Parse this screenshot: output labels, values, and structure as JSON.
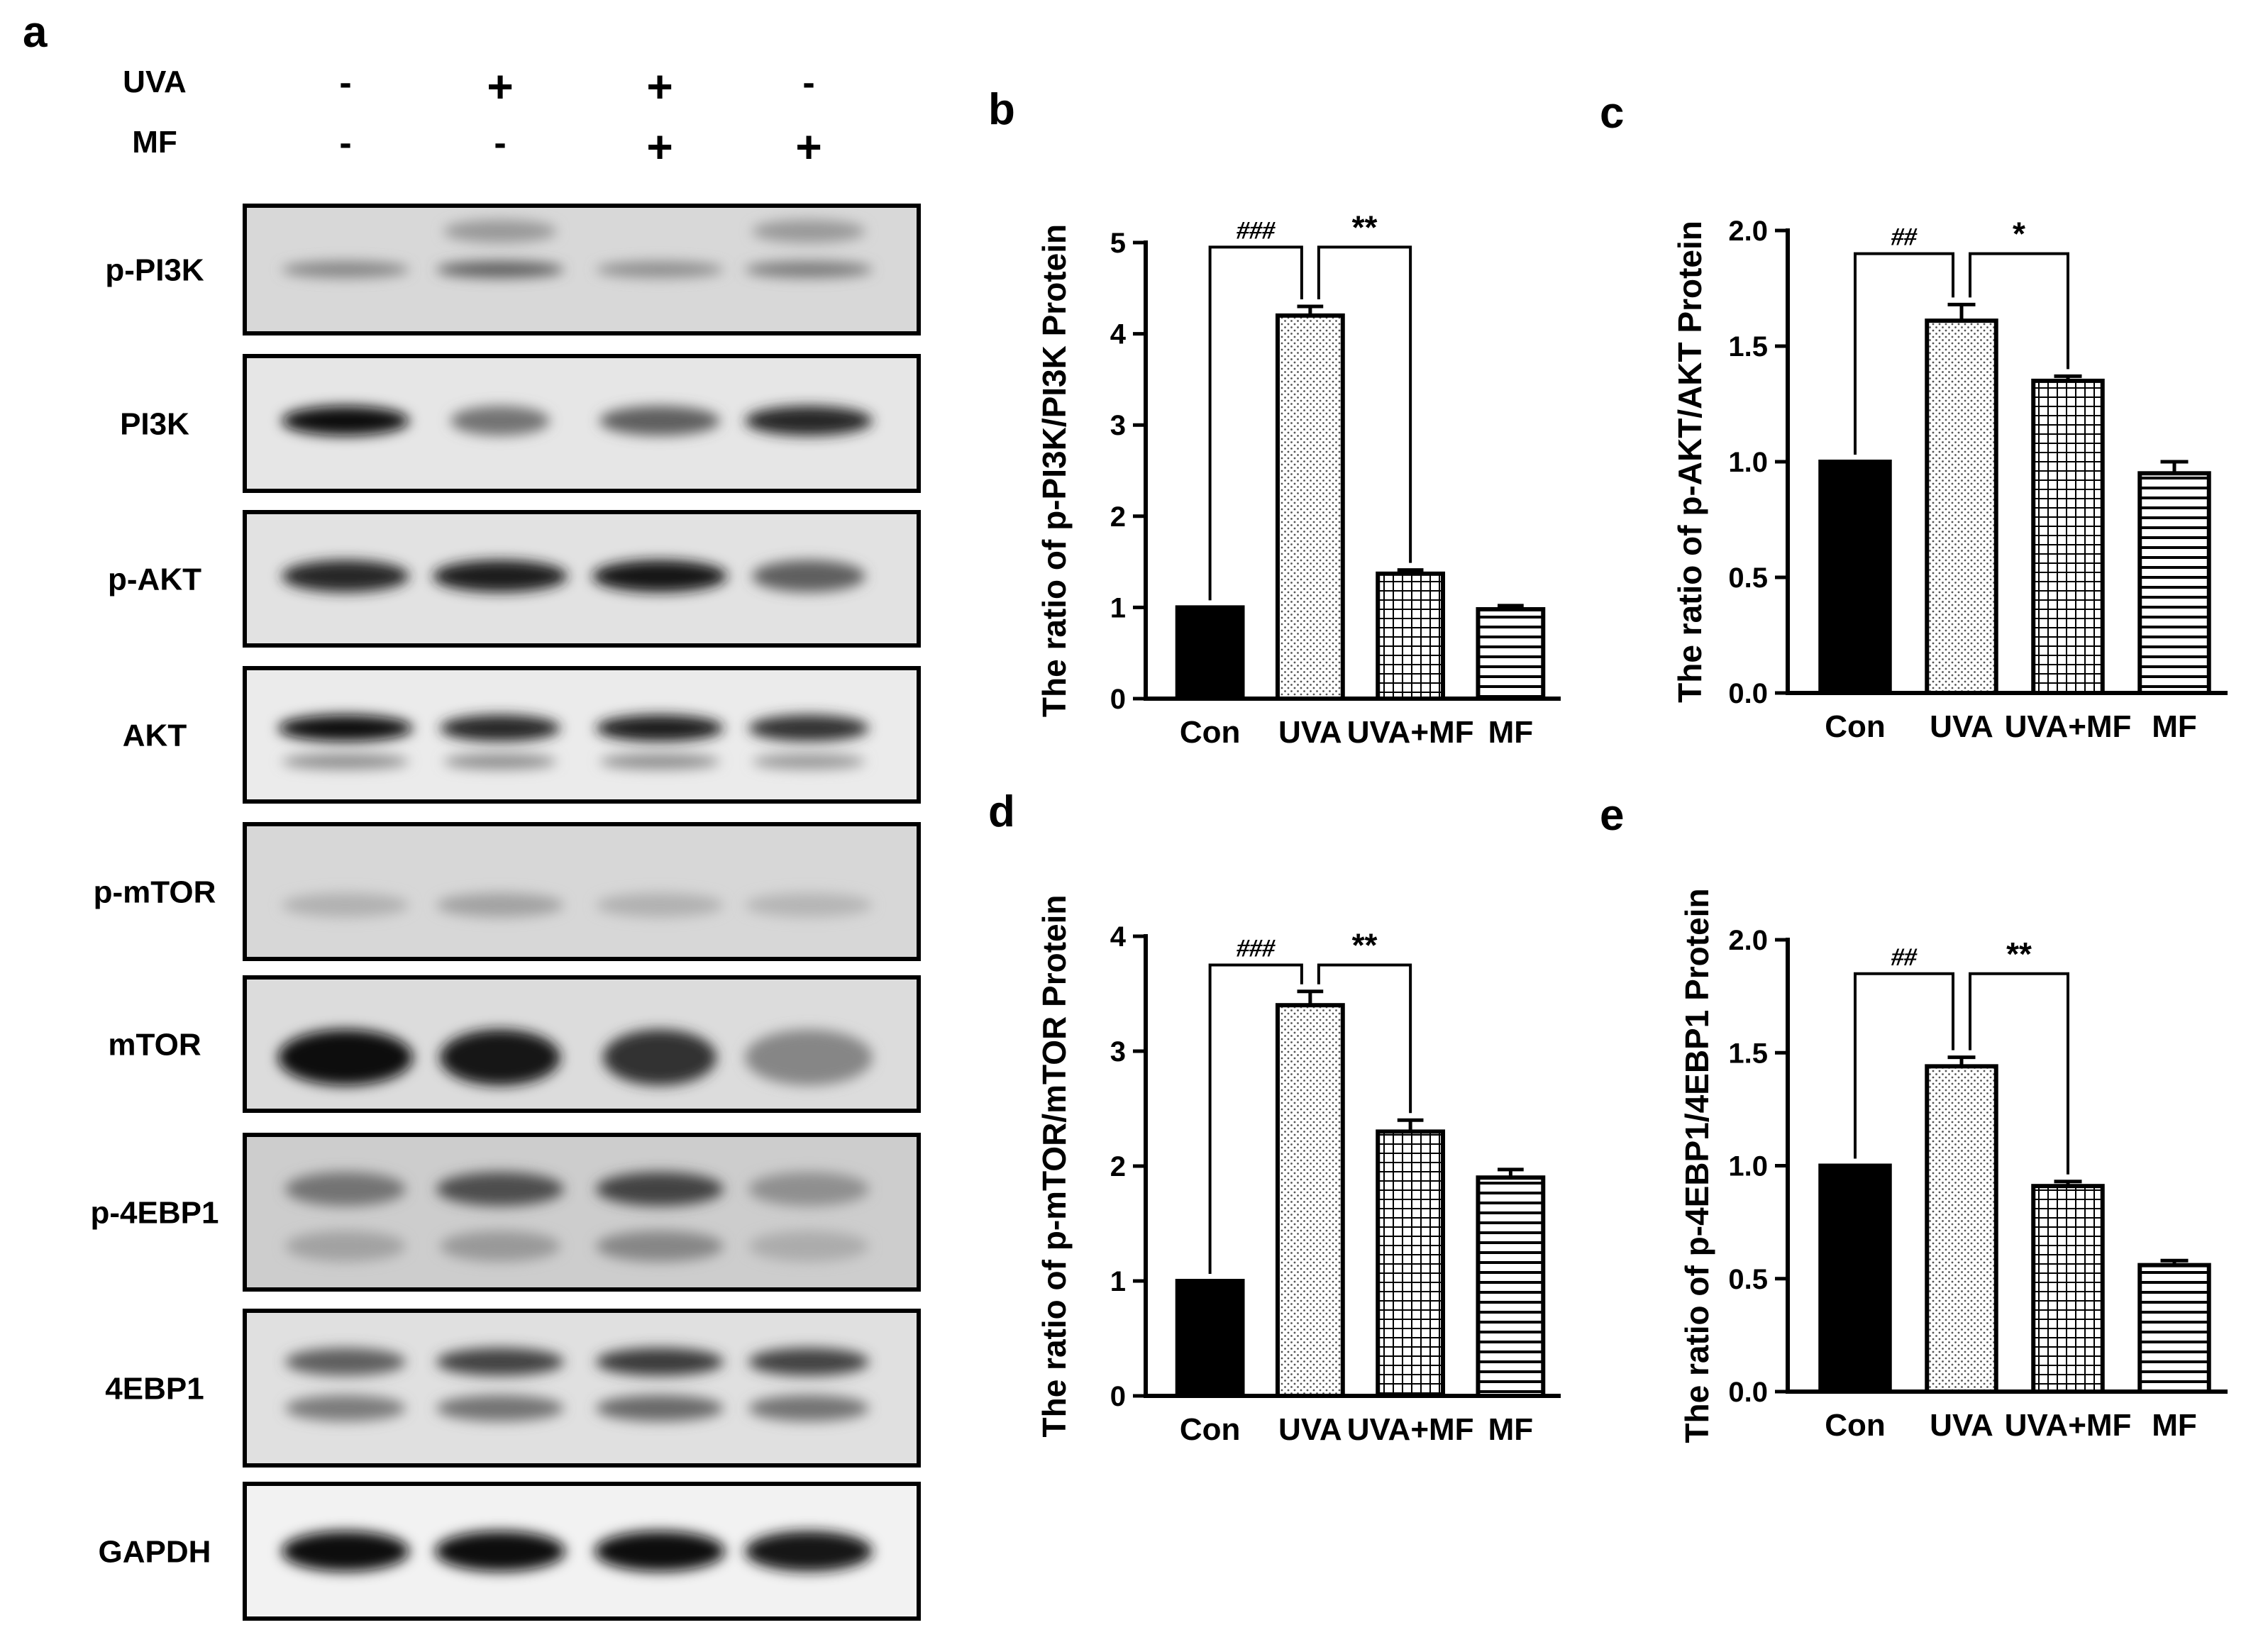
{
  "panel_a": {
    "letter": "a",
    "conditions": [
      {
        "name": "UVA",
        "values": [
          "-",
          "+",
          "+",
          "-"
        ]
      },
      {
        "name": "MF",
        "values": [
          "-",
          "-",
          "+",
          "+"
        ]
      }
    ],
    "blots": [
      {
        "label": "p-PI3K",
        "bands": [
          {
            "y": 0.5,
            "w": [
              0.9,
              0.9,
              0.9,
              0.9
            ],
            "i": [
              0.35,
              0.55,
              0.3,
              0.4
            ],
            "t": 0.13
          },
          {
            "y": 0.2,
            "w": [
              0.8,
              0.8,
              0.8,
              0.8
            ],
            "i": [
              0.0,
              0.25,
              0.0,
              0.25
            ],
            "t": 0.18
          }
        ],
        "bg": "#d8d8d8"
      },
      {
        "label": "PI3K",
        "bands": [
          {
            "y": 0.48,
            "w": [
              0.9,
              0.7,
              0.85,
              0.9
            ],
            "i": [
              1.0,
              0.45,
              0.55,
              0.85
            ],
            "t": 0.22
          }
        ],
        "bg": "#e6e6e6"
      },
      {
        "label": "p-AKT",
        "bands": [
          {
            "y": 0.48,
            "w": [
              0.9,
              0.95,
              0.95,
              0.8
            ],
            "i": [
              0.85,
              0.9,
              0.95,
              0.55
            ],
            "t": 0.24
          }
        ],
        "bg": "#e2e2e2"
      },
      {
        "label": "AKT",
        "bands": [
          {
            "y": 0.45,
            "w": [
              0.95,
              0.85,
              0.9,
              0.85
            ],
            "i": [
              1.0,
              0.85,
              0.9,
              0.8
            ],
            "t": 0.2
          },
          {
            "y": 0.7,
            "w": [
              0.9,
              0.8,
              0.85,
              0.8
            ],
            "i": [
              0.3,
              0.3,
              0.3,
              0.25
            ],
            "t": 0.12
          }
        ],
        "bg": "#ebebeb"
      },
      {
        "label": "p-mTOR",
        "bands": [
          {
            "y": 0.6,
            "w": [
              0.9,
              0.9,
              0.9,
              0.9
            ],
            "i": [
              0.12,
              0.2,
              0.12,
              0.1
            ],
            "t": 0.18
          }
        ],
        "bg": "#d7d7d7"
      },
      {
        "label": "mTOR",
        "bands": [
          {
            "y": 0.6,
            "w": [
              0.95,
              0.85,
              0.8,
              0.9
            ],
            "i": [
              1.0,
              0.95,
              0.8,
              0.35
            ],
            "t": 0.42
          }
        ],
        "bg": "#dcdcdc"
      },
      {
        "label": "p-4EBP1",
        "bands": [
          {
            "y": 0.35,
            "w": [
              0.85,
              0.9,
              0.9,
              0.85
            ],
            "i": [
              0.45,
              0.65,
              0.7,
              0.3
            ],
            "t": 0.22
          },
          {
            "y": 0.72,
            "w": [
              0.85,
              0.85,
              0.9,
              0.85
            ],
            "i": [
              0.2,
              0.25,
              0.35,
              0.15
            ],
            "t": 0.2
          }
        ],
        "bg": "#cdcdcd"
      },
      {
        "label": "4EBP1",
        "bands": [
          {
            "y": 0.33,
            "w": [
              0.85,
              0.9,
              0.9,
              0.85
            ],
            "i": [
              0.55,
              0.7,
              0.75,
              0.7
            ],
            "t": 0.18
          },
          {
            "y": 0.63,
            "w": [
              0.85,
              0.9,
              0.9,
              0.85
            ],
            "i": [
              0.4,
              0.45,
              0.5,
              0.45
            ],
            "t": 0.17
          }
        ],
        "bg": "#e0e0e0"
      },
      {
        "label": "GAPDH",
        "bands": [
          {
            "y": 0.5,
            "w": [
              0.9,
              0.92,
              0.92,
              0.9
            ],
            "i": [
              1.0,
              1.0,
              1.0,
              0.95
            ],
            "t": 0.3
          }
        ],
        "bg": "#f2f2f2"
      }
    ]
  },
  "chart_data": [
    {
      "letter": "b",
      "type": "bar",
      "categories": [
        "Con",
        "UVA",
        "UVA+MF",
        "MF"
      ],
      "values": [
        1.0,
        4.2,
        1.37,
        0.98
      ],
      "errors": [
        0,
        0.1,
        0.04,
        0.04
      ],
      "ylabel": "The ratio of p-PI3K/PI3K Protein",
      "ylim": [
        0,
        5
      ],
      "yticks": [
        0,
        1,
        2,
        3,
        4,
        5
      ],
      "tick_decimals": 0,
      "brackets": [
        {
          "from": 0,
          "to": 1,
          "label": "###",
          "y": 4.95
        },
        {
          "from": 1,
          "to": 2,
          "label": "**",
          "y": 4.95
        }
      ]
    },
    {
      "letter": "c",
      "type": "bar",
      "categories": [
        "Con",
        "UVA",
        "UVA+MF",
        "MF"
      ],
      "values": [
        1.0,
        1.61,
        1.35,
        0.95
      ],
      "errors": [
        0,
        0.07,
        0.02,
        0.05
      ],
      "ylabel": "The ratio of p-AKT/AKT Protein",
      "ylim": [
        0,
        2.0
      ],
      "yticks": [
        0.0,
        0.5,
        1.0,
        1.5,
        2.0
      ],
      "tick_decimals": 1,
      "brackets": [
        {
          "from": 0,
          "to": 1,
          "label": "##",
          "y": 1.9
        },
        {
          "from": 1,
          "to": 2,
          "label": "*",
          "y": 1.9
        }
      ]
    },
    {
      "letter": "d",
      "type": "bar",
      "categories": [
        "Con",
        "UVA",
        "UVA+MF",
        "MF"
      ],
      "values": [
        1.0,
        3.4,
        2.3,
        1.9
      ],
      "errors": [
        0,
        0.12,
        0.1,
        0.07
      ],
      "ylabel": "The ratio of p-mTOR/mTOR Protein",
      "ylim": [
        0,
        4
      ],
      "yticks": [
        0,
        1,
        2,
        3,
        4
      ],
      "tick_decimals": 0,
      "brackets": [
        {
          "from": 0,
          "to": 1,
          "label": "###",
          "y": 3.75
        },
        {
          "from": 1,
          "to": 2,
          "label": "**",
          "y": 3.75
        }
      ]
    },
    {
      "letter": "e",
      "type": "bar",
      "categories": [
        "Con",
        "UVA",
        "UVA+MF",
        "MF"
      ],
      "values": [
        1.0,
        1.44,
        0.91,
        0.56
      ],
      "errors": [
        0,
        0.04,
        0.02,
        0.02
      ],
      "ylabel": "The ratio of p-4EBP1/4EBP1 Protein",
      "ylim": [
        0,
        2.0
      ],
      "yticks": [
        0.0,
        0.5,
        1.0,
        1.5,
        2.0
      ],
      "tick_decimals": 1,
      "brackets": [
        {
          "from": 0,
          "to": 1,
          "label": "##",
          "y": 1.85
        },
        {
          "from": 1,
          "to": 2,
          "label": "**",
          "y": 1.85
        }
      ]
    }
  ],
  "colors": {
    "axis": "#000000",
    "bar_con": "#000000",
    "bar_outline": "#000000",
    "blot_band": "#111111"
  },
  "bar_patterns": [
    "solid",
    "dots",
    "grid",
    "horizontal-lines"
  ]
}
